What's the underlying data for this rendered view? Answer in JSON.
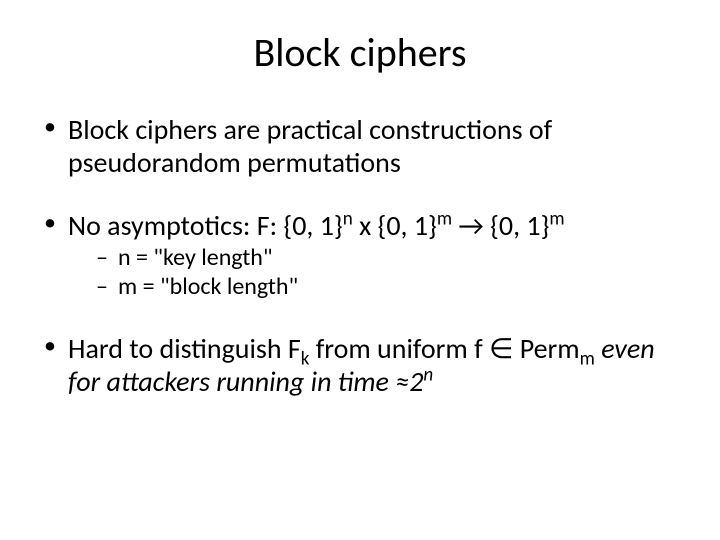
{
  "slide": {
    "title": "Block ciphers",
    "title_fontsize": 40,
    "body_fontsize": 28,
    "sub_fontsize": 24,
    "background_color": "#ffffff",
    "text_color": "#000000",
    "bullets": [
      {
        "text": "Block ciphers are practical constructions of pseudorandom permutations",
        "children": []
      },
      {
        "prefix": "No asymptotics:  F: {0, 1}",
        "exp1": "n",
        "mid1": " x {0, 1}",
        "exp2": "m",
        "arrow": " → ",
        "mid2": "{0, 1}",
        "exp3": "m",
        "children": [
          {
            "text": "n = \"key length\""
          },
          {
            "text": "m = \"block length\""
          }
        ]
      },
      {
        "p1": "Hard to distinguish F",
        "sub1": "k",
        "p2": " from uniform f ",
        "elem": "∈",
        "p3": " Perm",
        "sub2": "m",
        "p4_italic": "even for attackers running in time ",
        "approx": "≈",
        "base": "2",
        "exp": "n",
        "children": []
      }
    ]
  }
}
